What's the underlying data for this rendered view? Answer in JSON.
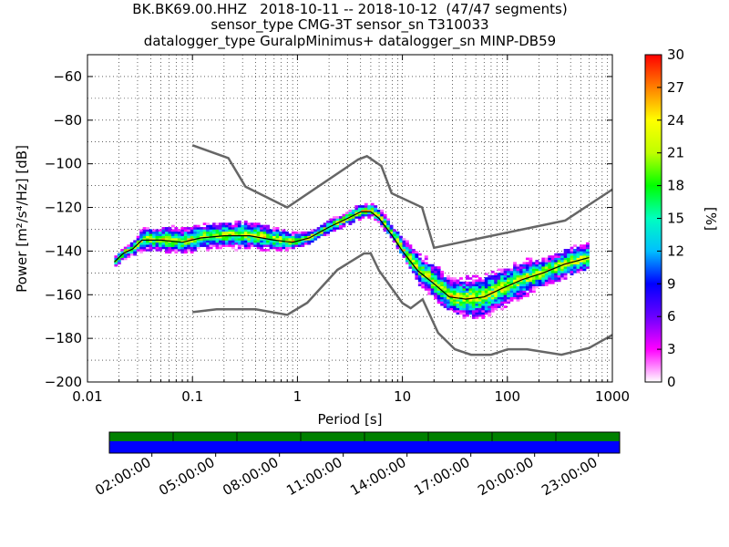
{
  "title": {
    "line1": "BK.BK69.00.HHZ   2018-10-11 -- 2018-10-12  (47/47 segments)",
    "line2": "sensor_type CMG-3T sensor_sn T310033",
    "line3": "datalogger_type GuralpMinimus+ datalogger_sn MINP-DB59"
  },
  "chart_data": [
    {
      "type": "heatmap",
      "name": "ppsd",
      "xlabel": "Period [s]",
      "ylabel": "Power [m²/s⁴/Hz] [dB]",
      "xscale": "log",
      "xlim": [
        0.01,
        1000
      ],
      "ylim": [
        -200,
        -50
      ],
      "x_tick_labels": [
        "0.01",
        "0.1",
        "1",
        "10",
        "100",
        "1000"
      ],
      "y_tick_labels": [
        "−200",
        "−180",
        "−160",
        "−140",
        "−120",
        "−100",
        "−80",
        "−60"
      ],
      "grid": true,
      "colorbar": {
        "label": "[%]",
        "range": [
          0,
          30
        ],
        "tick_labels": [
          "0",
          "3",
          "6",
          "9",
          "12",
          "15",
          "18",
          "21",
          "24",
          "27",
          "30"
        ],
        "colors": [
          "#ffffff",
          "#ff00ff",
          "#6a00ff",
          "#0000ff",
          "#00bfff",
          "#00ffbf",
          "#00ff00",
          "#bfff00",
          "#ffff00",
          "#ff8000",
          "#ff0000"
        ]
      },
      "nhnm": {
        "x": [
          0.1,
          0.22,
          0.32,
          0.8,
          3.8,
          4.6,
          6.3,
          7.9,
          15.4,
          20,
          354.8,
          10000
        ],
        "y": [
          -91.5,
          -97.4,
          -110.5,
          -120,
          -98,
          -96.5,
          -101,
          -113.5,
          -120,
          -138.5,
          -126,
          -80.1
        ]
      },
      "nlnm": {
        "x": [
          0.1,
          0.17,
          0.4,
          0.8,
          1.24,
          2.4,
          4.3,
          5,
          6,
          10,
          12,
          15.6,
          21.9,
          31.6,
          45,
          70,
          101,
          154,
          328,
          600,
          10000
        ],
        "y": [
          -168,
          -166.7,
          -166.7,
          -169.2,
          -163.7,
          -148.6,
          -141.1,
          -141.1,
          -149,
          -163.8,
          -166.2,
          -162.1,
          -177.5,
          -185,
          -187.5,
          -187.5,
          -185,
          -185,
          -187.5,
          -184.4,
          -151.5
        ]
      },
      "mode": {
        "x": [
          0.018,
          0.022,
          0.027,
          0.033,
          0.05,
          0.08,
          0.12,
          0.2,
          0.35,
          0.6,
          0.9,
          1.3,
          2,
          3,
          4,
          5,
          6,
          8,
          10,
          14,
          20,
          28,
          40,
          60,
          90,
          140,
          220,
          350,
          600
        ],
        "y": [
          -145,
          -141,
          -139,
          -135,
          -135,
          -136,
          -134,
          -133,
          -133,
          -135,
          -136,
          -134,
          -129,
          -125,
          -122,
          -122,
          -125,
          -133,
          -140,
          -149,
          -155,
          -161,
          -162,
          -161,
          -157,
          -153,
          -150,
          -146,
          -143
        ]
      },
      "spread": {
        "x": [
          0.018,
          0.025,
          0.035,
          0.06,
          0.1,
          0.2,
          0.35,
          0.6,
          0.9,
          1.3,
          2,
          3,
          4,
          5,
          6,
          8,
          10,
          14,
          20,
          28,
          40,
          60,
          90,
          140,
          220,
          350,
          600
        ],
        "upper": [
          -142,
          -138,
          -129,
          -129,
          -129,
          -128,
          -127,
          -129,
          -132,
          -131,
          -126,
          -121,
          -119,
          -119,
          -122,
          -129,
          -134,
          -140,
          -145,
          -150,
          -152,
          -152,
          -149,
          -145,
          -143,
          -138,
          -134
        ],
        "lower": [
          -147,
          -144,
          -140,
          -141,
          -141,
          -140,
          -140,
          -140,
          -140,
          -137,
          -132,
          -128,
          -126,
          -126,
          -129,
          -137,
          -144,
          -155,
          -162,
          -167,
          -172,
          -172,
          -168,
          -162,
          -156,
          -152,
          -147
        ]
      }
    },
    {
      "type": "timeline",
      "name": "coverage",
      "x_tick_labels": [
        "02:00:00",
        "05:00:00",
        "08:00:00",
        "11:00:00",
        "14:00:00",
        "17:00:00",
        "20:00:00",
        "23:00:00"
      ],
      "top_band_color": "#008000",
      "bottom_band_color": "#0000ff",
      "segment_markers_hours": [
        0,
        3,
        6,
        9,
        12,
        15,
        18,
        21,
        24
      ]
    }
  ]
}
